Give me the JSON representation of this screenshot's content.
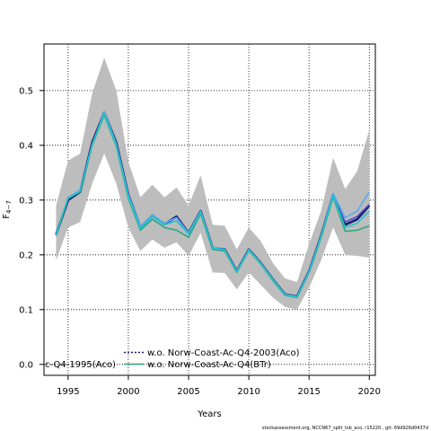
{
  "chart_data": {
    "type": "line",
    "xlabel": "Years",
    "ylabel": "F",
    "ylabel_sub": "4−7",
    "xlim": [
      1993.0,
      2020.5
    ],
    "ylim": [
      -0.02,
      0.585
    ],
    "xticks": [
      1995,
      2000,
      2005,
      2010,
      2015,
      2020
    ],
    "yticks": [
      0.0,
      0.1,
      0.2,
      0.3,
      0.4,
      0.5
    ],
    "grid": true,
    "x": [
      1994,
      1995,
      1996,
      1997,
      1998,
      1999,
      2000,
      2001,
      2002,
      2003,
      2004,
      2005,
      2006,
      2007,
      2008,
      2009,
      2010,
      2011,
      2012,
      2013,
      2014,
      2015,
      2016,
      2017,
      2018,
      2019,
      2020
    ],
    "band": {
      "lower": [
        0.19,
        0.25,
        0.26,
        0.33,
        0.385,
        0.33,
        0.25,
        0.207,
        0.228,
        0.213,
        0.223,
        0.198,
        0.24,
        0.168,
        0.167,
        0.137,
        0.168,
        0.145,
        0.122,
        0.105,
        0.1,
        0.14,
        0.19,
        0.25,
        0.2,
        0.198,
        0.195
      ],
      "upper": [
        0.29,
        0.372,
        0.385,
        0.495,
        0.56,
        0.5,
        0.37,
        0.305,
        0.328,
        0.305,
        0.323,
        0.29,
        0.345,
        0.255,
        0.253,
        0.21,
        0.25,
        0.225,
        0.185,
        0.157,
        0.15,
        0.22,
        0.28,
        0.377,
        0.32,
        0.353,
        0.428
      ]
    },
    "series": [
      {
        "values": [
          0.237,
          0.3,
          0.315,
          0.405,
          0.46,
          0.405,
          0.31,
          0.25,
          0.272,
          0.256,
          0.27,
          0.24,
          0.28,
          0.212,
          0.21,
          0.17,
          0.21,
          0.185,
          0.155,
          0.128,
          0.124,
          0.17,
          0.235,
          0.31,
          0.255,
          0.265,
          0.29
        ],
        "color": "#1a1a6e"
      },
      {
        "values": [
          0.238,
          0.302,
          0.316,
          0.403,
          0.458,
          0.4,
          0.305,
          0.248,
          0.27,
          0.255,
          0.268,
          0.24,
          0.277,
          0.21,
          0.208,
          0.17,
          0.21,
          0.183,
          0.154,
          0.127,
          0.123,
          0.17,
          0.235,
          0.308,
          0.26,
          0.27,
          0.292
        ],
        "color": "#5050c8"
      },
      {
        "values": [
          0.236,
          0.305,
          0.318,
          0.4,
          0.462,
          0.403,
          0.31,
          0.252,
          0.273,
          0.258,
          0.268,
          0.24,
          0.28,
          0.213,
          0.21,
          0.17,
          0.21,
          0.185,
          0.155,
          0.128,
          0.124,
          0.17,
          0.235,
          0.312,
          0.268,
          0.28,
          0.315
        ],
        "color": "#5aaaf0"
      },
      {
        "values": [
          0.235,
          0.303,
          0.315,
          0.4,
          0.455,
          0.398,
          0.303,
          0.245,
          0.265,
          0.25,
          0.245,
          0.232,
          0.275,
          0.21,
          0.207,
          0.168,
          0.208,
          0.183,
          0.153,
          0.126,
          0.122,
          0.168,
          0.232,
          0.305,
          0.243,
          0.245,
          0.253
        ],
        "color": "#2aa882"
      },
      {
        "values": [
          0.236,
          0.304,
          0.316,
          0.402,
          0.458,
          0.4,
          0.306,
          0.248,
          0.27,
          0.255,
          0.262,
          0.238,
          0.278,
          0.212,
          0.209,
          0.169,
          0.209,
          0.184,
          0.154,
          0.127,
          0.123,
          0.169,
          0.234,
          0.308,
          0.25,
          0.258,
          0.28
        ],
        "color": "#22c4c8"
      }
    ],
    "legend": [
      {
        "label": "c-Q4-1995(Aco)",
        "style": "solid",
        "color": "#000000"
      },
      {
        "label": "w.o. Norw-Coast-Ac-Q4-2003(Aco)",
        "style": "dotted",
        "color": "#1a1a6e"
      },
      {
        "label": "w.o. Norw-Coast-Ac-Q4(BTr)",
        "style": "solid",
        "color": "#2aa882"
      }
    ],
    "footer": "stockassessment.org, NCCN67_split_tsb_aco, r15220 , git: 69d926d0437d"
  }
}
